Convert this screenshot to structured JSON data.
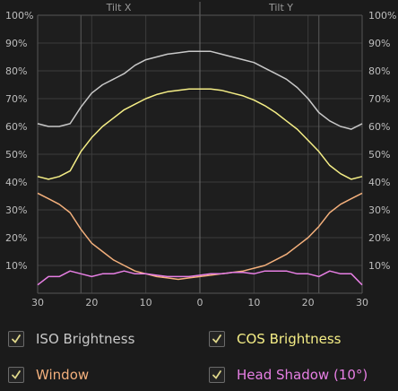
{
  "chart_data": {
    "type": "line",
    "x_ticks": [
      "30",
      "20",
      "10",
      "0",
      "10",
      "20",
      "30"
    ],
    "y_ticks": [
      "10%",
      "20%",
      "30%",
      "40%",
      "50%",
      "60%",
      "70%",
      "80%",
      "90%",
      "100%"
    ],
    "axis_labels": [
      "Tilt X",
      "Tilt Y"
    ],
    "x": [
      -30,
      -28,
      -26,
      -24,
      -22,
      -20,
      -18,
      -16,
      -14,
      -12,
      -10,
      -8,
      -6,
      -4,
      -2,
      0,
      2,
      4,
      6,
      8,
      10,
      12,
      14,
      16,
      18,
      20,
      22,
      24,
      26,
      28,
      30
    ],
    "ylim": [
      0,
      100
    ],
    "series": [
      {
        "name": "ISO Brightness",
        "color": "#c8c8c8",
        "checked": true,
        "values": [
          61,
          60,
          60,
          61,
          67,
          72,
          75,
          77,
          79,
          82,
          84,
          85,
          86,
          86.5,
          87,
          87,
          87,
          86,
          85,
          84,
          83,
          81,
          79,
          77,
          74,
          70,
          65,
          62,
          60,
          59,
          61
        ]
      },
      {
        "name": "COS Brightness",
        "color": "#f5ee86",
        "checked": true,
        "values": [
          42,
          41,
          42,
          44,
          51,
          56,
          60,
          63,
          66,
          68,
          70,
          71.5,
          72.5,
          73,
          73.5,
          73.5,
          73.5,
          73,
          72,
          71,
          69.5,
          67.5,
          65,
          62,
          59,
          55,
          51,
          46,
          43,
          41,
          42
        ]
      },
      {
        "name": "Window",
        "color": "#f4b07c",
        "checked": true,
        "values": [
          36,
          34,
          32,
          29,
          23,
          18,
          15,
          12,
          10,
          8,
          7,
          6,
          5.5,
          5,
          5.5,
          6,
          6.5,
          7,
          7.5,
          8,
          9,
          10,
          12,
          14,
          17,
          20,
          24,
          29,
          32,
          34,
          36
        ]
      },
      {
        "name": "Head Shadow (10°)",
        "color": "#e77fe4",
        "checked": true,
        "values": [
          3,
          6,
          6,
          8,
          7,
          6,
          7,
          7,
          8,
          7,
          7,
          6.5,
          6,
          6,
          6,
          6.5,
          7,
          7,
          7.5,
          7.5,
          7,
          8,
          8,
          8,
          7,
          7,
          6,
          8,
          7,
          7,
          3
        ]
      }
    ]
  },
  "check_glyph": "✓"
}
